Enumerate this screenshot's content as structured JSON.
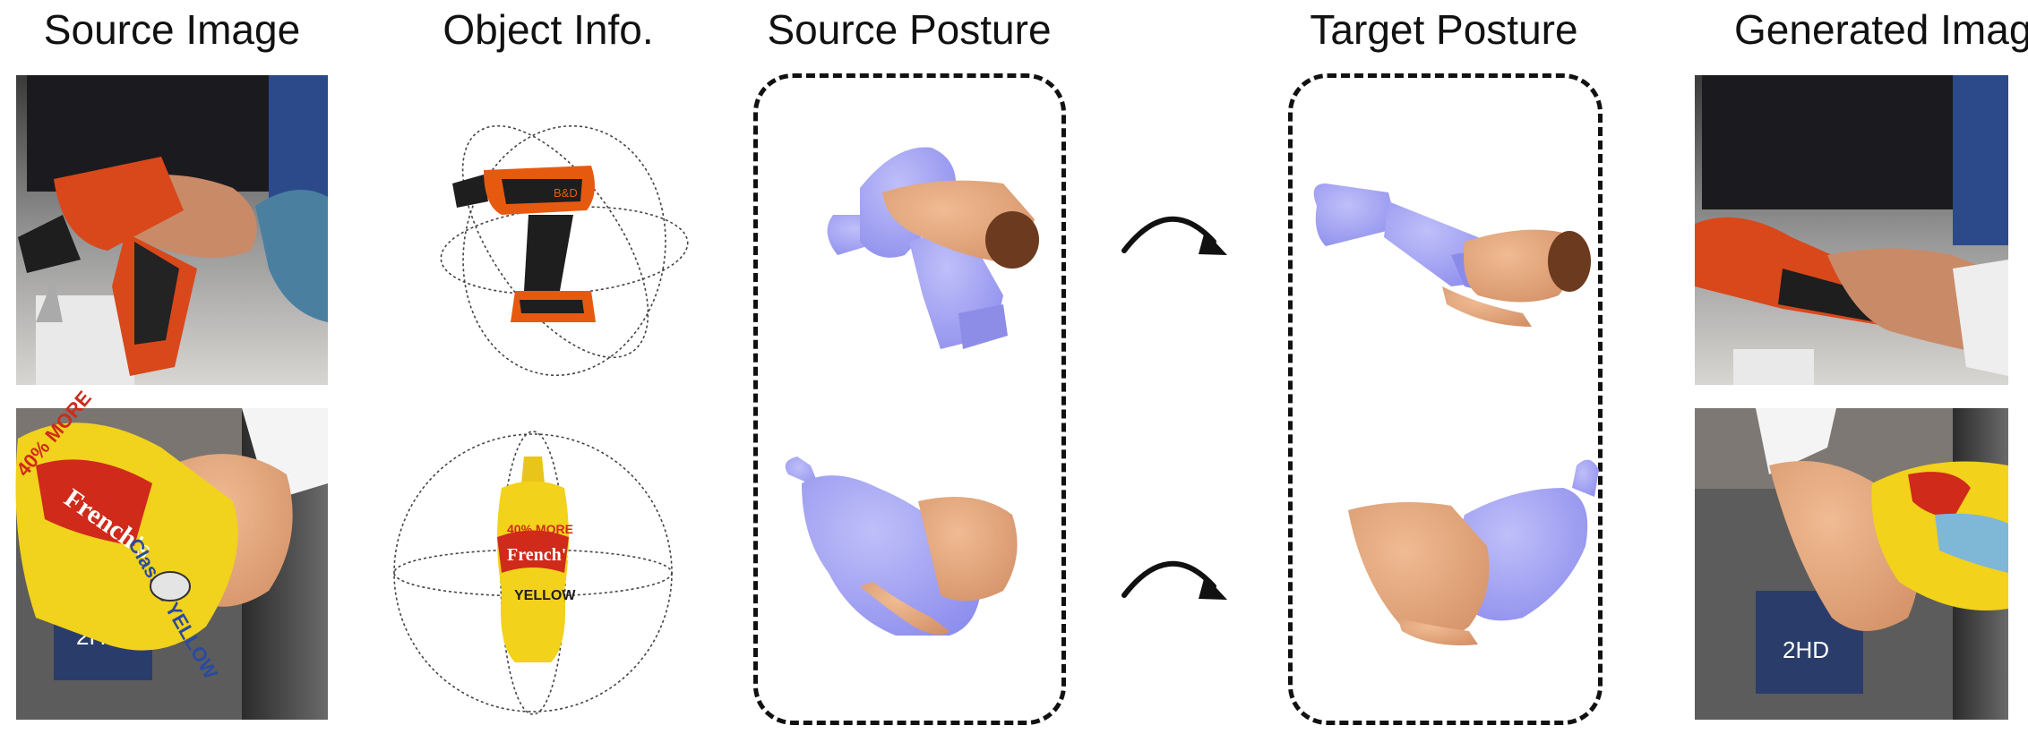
{
  "titles": {
    "source_image": "Source Image",
    "object_info": "Object Info.",
    "source_posture": "Source Posture",
    "target_posture": "Target Posture",
    "generated_image": "Generated Image"
  },
  "product_labels": {
    "mustard_brand": "French's",
    "mustard_promo": "40% MORE",
    "mustard_type": "Classic YELLOW"
  },
  "colors": {
    "mesh": "#a6a6f5",
    "mesh_shadow": "#7d7ee0",
    "skin": "#e6a77a",
    "skin_shadow": "#c9855a",
    "drill_orange": "#e65a10",
    "drill_black": "#1e1e1e",
    "mustard_yellow": "#f2d21a",
    "mustard_red": "#cf2a1a"
  }
}
